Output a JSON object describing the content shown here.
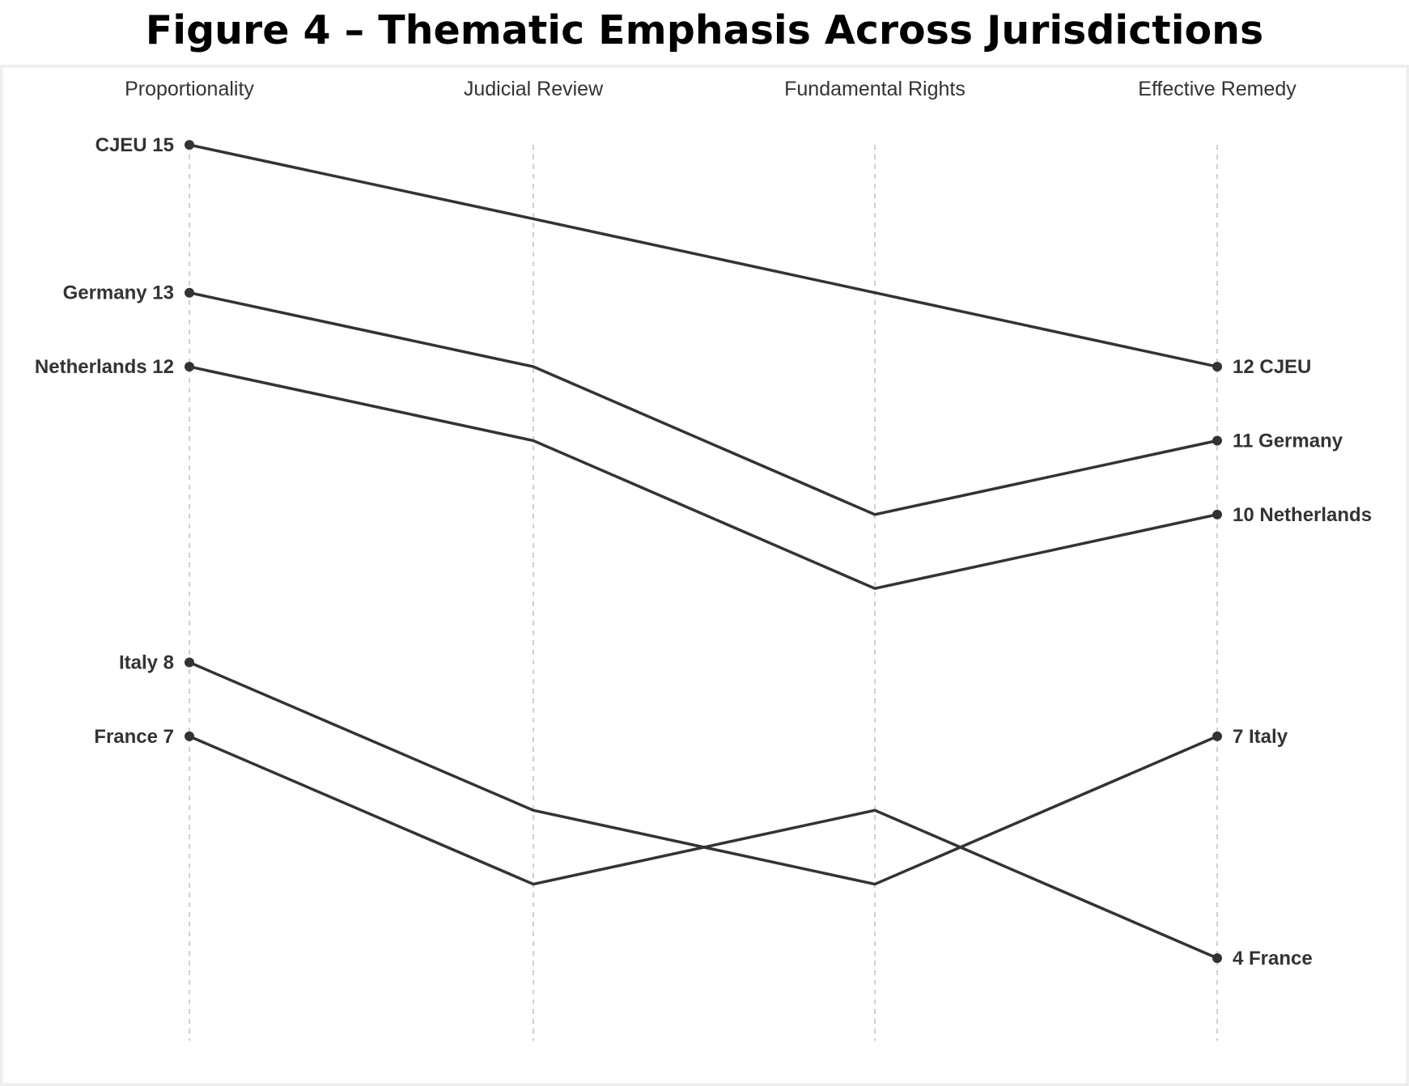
{
  "title": "Figure 4 – Thematic Emphasis Across Jurisdictions",
  "colors": {
    "line": "#333333",
    "guide": "#cfcfcf",
    "frame": "#eeeeee",
    "text": "#333333"
  },
  "chart_data": {
    "type": "line",
    "subtype": "slope-bump",
    "title": "Figure 4 – Thematic Emphasis Across Jurisdictions",
    "categories": [
      "Proportionality",
      "Judicial Review",
      "Fundamental Rights",
      "Effective Remedy"
    ],
    "ylim": [
      4,
      15
    ],
    "grid": "vertical dashed guides at each category",
    "legend": "none (direct labels at line ends)",
    "series": [
      {
        "name": "CJEU",
        "values": [
          15,
          14,
          13,
          12
        ]
      },
      {
        "name": "Germany",
        "values": [
          13,
          12,
          10,
          11
        ]
      },
      {
        "name": "Netherlands",
        "values": [
          12,
          11,
          9,
          10
        ]
      },
      {
        "name": "Italy",
        "values": [
          8,
          6,
          5,
          7
        ]
      },
      {
        "name": "France",
        "values": [
          7,
          5,
          6,
          4
        ]
      }
    ]
  }
}
